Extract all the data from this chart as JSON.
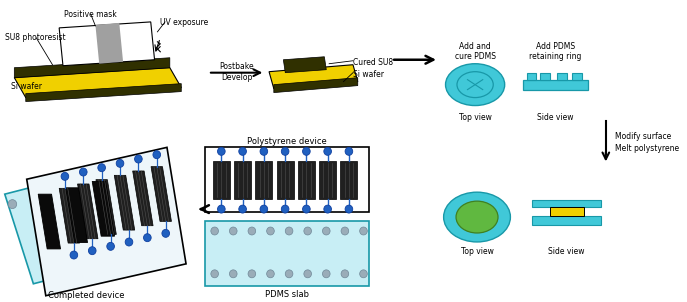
{
  "fig_width": 6.87,
  "fig_height": 3.02,
  "dpi": 100,
  "colors": {
    "yellow": "#F0D000",
    "dark_strip": "#303000",
    "black": "#000000",
    "white": "#FFFFFF",
    "mask_gray": "#A0A0A0",
    "cyan_pdms": "#40C8D8",
    "cyan_dark": "#1898A8",
    "cyan_light": "#C8EEF5",
    "blue_dot": "#2060C0",
    "blue_dark": "#1040A0",
    "green_fill": "#60B840",
    "green_dark": "#408020",
    "gray_dot": "#9AACB8",
    "gray_dot_dark": "#708898",
    "channel_dark": "#202020",
    "ps_white": "#F0F8FF"
  },
  "labels": {
    "su8": "SU8 photoresist",
    "positive_mask": "Positive mask",
    "uv": "UV exposure",
    "si_wafer_left": "Si wafer",
    "postbake": "Postbake",
    "develop": "Develop",
    "cured_su8": "Cured SU8",
    "si_wafer_right": "Si wafer",
    "add_cure": "Add and\ncure PDMS",
    "add_ring": "Add PDMS\nretaining ring",
    "top_view1": "Top view",
    "side_view1": "Side view",
    "modify": "Modify surface",
    "melt": "Melt polystyrene",
    "top_view2": "Top view",
    "side_view2": "Side view",
    "polystyrene": "Polystyrene device",
    "pdms_slab": "PDMS slab",
    "completed": "Completed device"
  }
}
